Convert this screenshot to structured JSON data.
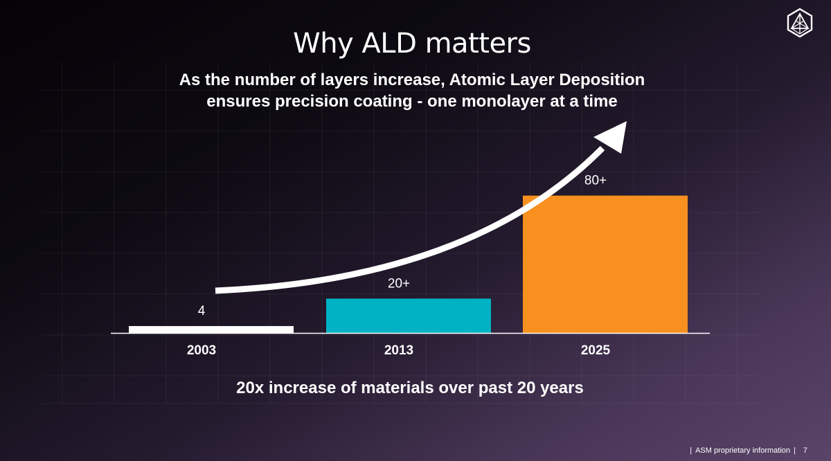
{
  "slide": {
    "title": "Why ALD matters",
    "subtitle_lines": [
      "As the number of layers increase, Atomic Layer Deposition",
      "ensures precision coating - one monolayer at a time"
    ],
    "footer": {
      "text": "ASM proprietary information",
      "page_number": "7"
    },
    "logo_icon": "geometric-atom-logo-icon"
  },
  "colors": {
    "bar_2003": "#ffffff",
    "bar_2013": "#00b2c3",
    "bar_2025": "#f7901e",
    "arrow": "#ffffff",
    "axis": "#ffffff"
  },
  "chart_data": {
    "type": "bar",
    "title": "",
    "xlabel": "",
    "ylabel": "",
    "categories": [
      "2003",
      "2013",
      "2025"
    ],
    "values": [
      4,
      20,
      80
    ],
    "data_labels": [
      "4",
      "20+",
      "80+"
    ],
    "ylim": [
      0,
      100
    ],
    "grid": false,
    "legend": "none",
    "annotations": {
      "trend_arrow": "upward curved arrow",
      "caption": "20x increase of materials over past 20 years"
    }
  }
}
